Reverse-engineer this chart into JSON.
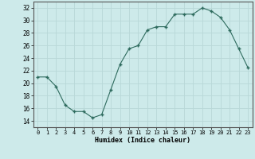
{
  "x": [
    0,
    1,
    2,
    3,
    4,
    5,
    6,
    7,
    8,
    9,
    10,
    11,
    12,
    13,
    14,
    15,
    16,
    17,
    18,
    19,
    20,
    21,
    22,
    23
  ],
  "y": [
    21,
    21,
    19.5,
    16.5,
    15.5,
    15.5,
    14.5,
    15,
    19,
    23,
    25.5,
    26,
    28.5,
    29,
    29,
    31,
    31,
    31,
    32,
    31.5,
    30.5,
    28.5,
    25.5,
    22.5
  ],
  "line_color": "#2e6b5e",
  "marker_color": "#2e6b5e",
  "bg_color": "#cdeaea",
  "grid_major_color": "#b8d8d8",
  "grid_minor_color": "#d4ecec",
  "xlabel": "Humidex (Indice chaleur)",
  "ylim": [
    13,
    33
  ],
  "xlim": [
    -0.5,
    23.5
  ],
  "yticks": [
    14,
    16,
    18,
    20,
    22,
    24,
    26,
    28,
    30,
    32
  ],
  "xticks": [
    0,
    1,
    2,
    3,
    4,
    5,
    6,
    7,
    8,
    9,
    10,
    11,
    12,
    13,
    14,
    15,
    16,
    17,
    18,
    19,
    20,
    21,
    22,
    23
  ]
}
